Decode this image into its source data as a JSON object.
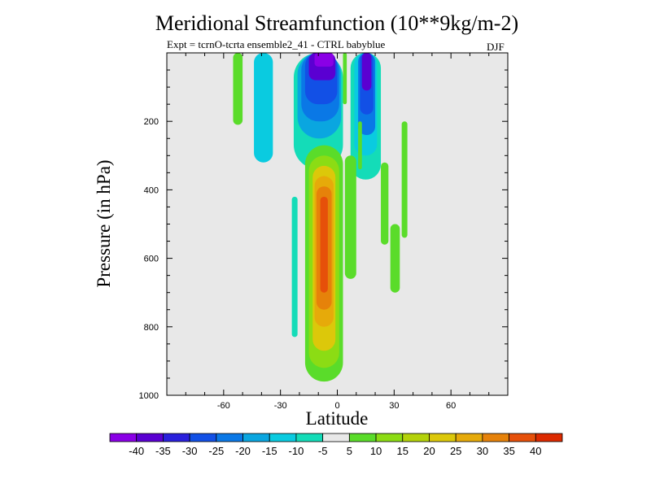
{
  "chart_data": {
    "type": "heatmap",
    "title": "Meridional Streamfunction (10**9kg/m-2)",
    "subtitle": "Expt = tcrnO-tcrta ensemble2_41 - CTRL babyblue",
    "season": "DJF",
    "xlabel": "Latitude",
    "ylabel": "Pressure (in hPa)",
    "xlim": [
      -90,
      90
    ],
    "ylim": [
      0,
      1000
    ],
    "y_inverted": true,
    "x_ticks": [
      -60,
      -30,
      0,
      30,
      60
    ],
    "x_tick_labels": [
      "-60",
      "-30",
      "0",
      "30",
      "60"
    ],
    "y_ticks": [
      200,
      400,
      600,
      800,
      1000
    ],
    "y_tick_labels": [
      "200",
      "400",
      "600",
      "800",
      "1000"
    ],
    "background_color": "#e8e8e8",
    "colorbar": {
      "levels": [
        -40,
        -35,
        -30,
        -25,
        -20,
        -15,
        -10,
        -5,
        5,
        10,
        15,
        20,
        25,
        30,
        35,
        40
      ],
      "labels": [
        "-40",
        "-35",
        "-30",
        "-25",
        "-20",
        "-15",
        "-10",
        "-5",
        "5",
        "10",
        "15",
        "20",
        "25",
        "30",
        "35",
        "40"
      ],
      "colors": [
        "#8a00e6",
        "#5a00d2",
        "#2a20dc",
        "#1250e6",
        "#0a78e6",
        "#0aa6e0",
        "#0acbe0",
        "#14dcb8",
        "#e8e8e8",
        "#5adc2a",
        "#8cdc14",
        "#b4d20a",
        "#dcc80a",
        "#e6aa0a",
        "#e6820a",
        "#e6500a",
        "#dc2a00"
      ]
    },
    "cells": [
      {
        "lat": [
          -55,
          -50
        ],
        "p": [
          0,
          210
        ],
        "value": 7
      },
      {
        "lat": [
          -44,
          -34
        ],
        "p": [
          0,
          320
        ],
        "value": -12
      },
      {
        "lat": [
          -23,
          3
        ],
        "p": [
          0,
          340
        ],
        "value": -8
      },
      {
        "lat": [
          -21,
          2
        ],
        "p": [
          0,
          250
        ],
        "value": -16
      },
      {
        "lat": [
          -19,
          1
        ],
        "p": [
          0,
          200
        ],
        "value": -22
      },
      {
        "lat": [
          -17,
          0
        ],
        "p": [
          0,
          150
        ],
        "value": -30
      },
      {
        "lat": [
          -15,
          -1
        ],
        "p": [
          0,
          80
        ],
        "value": -38
      },
      {
        "lat": [
          -12,
          -2
        ],
        "p": [
          0,
          40
        ],
        "value": -42
      },
      {
        "lat": [
          3,
          5
        ],
        "p": [
          0,
          150
        ],
        "value": 7
      },
      {
        "lat": [
          7,
          23
        ],
        "p": [
          0,
          370
        ],
        "value": -8
      },
      {
        "lat": [
          9,
          21
        ],
        "p": [
          0,
          300
        ],
        "value": -14
      },
      {
        "lat": [
          11,
          20
        ],
        "p": [
          0,
          240
        ],
        "value": -22
      },
      {
        "lat": [
          12,
          19
        ],
        "p": [
          0,
          180
        ],
        "value": -30
      },
      {
        "lat": [
          13,
          18
        ],
        "p": [
          0,
          110
        ],
        "value": -38
      },
      {
        "lat": [
          -24,
          -21
        ],
        "p": [
          420,
          830
        ],
        "value": -8
      },
      {
        "lat": [
          -17,
          3
        ],
        "p": [
          270,
          960
        ],
        "value": 8
      },
      {
        "lat": [
          -15,
          1
        ],
        "p": [
          300,
          920
        ],
        "value": 14
      },
      {
        "lat": [
          -13,
          -1
        ],
        "p": [
          330,
          870
        ],
        "value": 20
      },
      {
        "lat": [
          -12,
          -2
        ],
        "p": [
          360,
          800
        ],
        "value": 27
      },
      {
        "lat": [
          -11,
          -3
        ],
        "p": [
          390,
          750
        ],
        "value": 33
      },
      {
        "lat": [
          -9,
          -5
        ],
        "p": [
          420,
          700
        ],
        "value": 38
      },
      {
        "lat": [
          4,
          10
        ],
        "p": [
          300,
          660
        ],
        "value": 7
      },
      {
        "lat": [
          11,
          13
        ],
        "p": [
          200,
          340
        ],
        "value": 7
      },
      {
        "lat": [
          23,
          27
        ],
        "p": [
          320,
          560
        ],
        "value": 7
      },
      {
        "lat": [
          28,
          33
        ],
        "p": [
          500,
          700
        ],
        "value": 7
      },
      {
        "lat": [
          34,
          37
        ],
        "p": [
          200,
          540
        ],
        "value": 7
      }
    ]
  }
}
